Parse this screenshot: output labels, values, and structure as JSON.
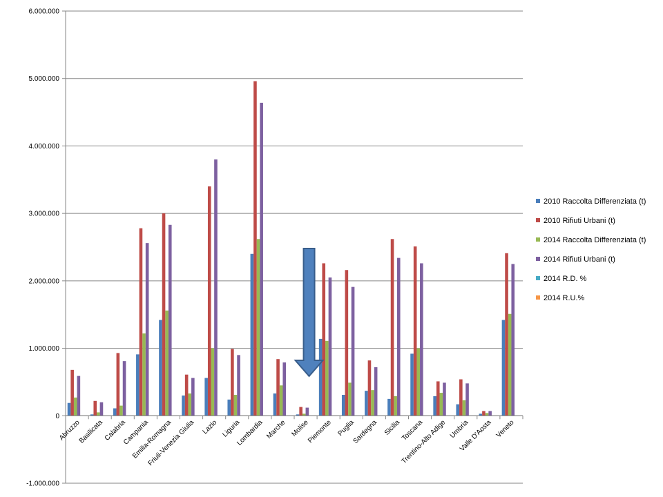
{
  "chart_data": {
    "type": "bar",
    "title": "",
    "xlabel": "",
    "ylabel": "",
    "ylim": [
      -1000000,
      6000000
    ],
    "yticks": [
      -1000000,
      0,
      1000000,
      2000000,
      3000000,
      4000000,
      5000000,
      6000000
    ],
    "ytick_labels": [
      "-1.000.000",
      "0",
      "1.000.000",
      "2.000.000",
      "3.000.000",
      "4.000.000",
      "5.000.000",
      "6.000.000"
    ],
    "grid": true,
    "legend_position": "right",
    "categories": [
      "Abruzzo",
      "Basilicata",
      "Calabria",
      "Campania",
      "Emilia-Romagna",
      "Friuli-Venezia Giulia",
      "Lazio",
      "Liguria",
      "Lombardia",
      "Marche",
      "Molise",
      "Piemonte",
      "Puglia",
      "Sardegna",
      "Sicilia",
      "Toscana",
      "Trentino-Alto Adige",
      "Umbria",
      "Valle D'Aosta",
      "Veneto"
    ],
    "series": [
      {
        "name": "2010 Raccolta Differenziata (t)",
        "color": "#4a7ebb",
        "values": [
          190000,
          20000,
          110000,
          910000,
          1420000,
          300000,
          560000,
          240000,
          2400000,
          330000,
          20000,
          1140000,
          310000,
          370000,
          250000,
          920000,
          290000,
          170000,
          30000,
          1420000
        ]
      },
      {
        "name": "2010 Rifiuti Urbani (t)",
        "color": "#be4b48",
        "values": [
          680000,
          220000,
          930000,
          2780000,
          3000000,
          610000,
          3400000,
          990000,
          4960000,
          840000,
          130000,
          2260000,
          2160000,
          820000,
          2620000,
          2510000,
          510000,
          540000,
          70000,
          2410000
        ]
      },
      {
        "name": "2014 Raccolta Differenziata (t)",
        "color": "#98b954",
        "values": [
          270000,
          50000,
          150000,
          1220000,
          1560000,
          330000,
          1000000,
          310000,
          2620000,
          450000,
          30000,
          1110000,
          490000,
          380000,
          290000,
          1000000,
          340000,
          230000,
          40000,
          1510000
        ]
      },
      {
        "name": "2014 Rifiuti Urbani (t)",
        "color": "#7d60a0",
        "values": [
          590000,
          200000,
          810000,
          2560000,
          2830000,
          560000,
          3800000,
          900000,
          4640000,
          790000,
          120000,
          2050000,
          1910000,
          720000,
          2340000,
          2260000,
          490000,
          480000,
          70000,
          2250000
        ]
      },
      {
        "name": "2014 R.D. %",
        "color": "#46aac5",
        "values": [
          0,
          0,
          0,
          0,
          0,
          0,
          0,
          0,
          0,
          0,
          0,
          0,
          0,
          0,
          0,
          0,
          0,
          0,
          0,
          0
        ]
      },
      {
        "name": "2014 R.U.%",
        "color": "#f79646",
        "values": [
          0,
          0,
          0,
          0,
          0,
          0,
          0,
          0,
          0,
          0,
          0,
          0,
          0,
          0,
          0,
          0,
          0,
          0,
          0,
          0
        ]
      }
    ],
    "annotations": [
      {
        "type": "down-arrow",
        "color": "#4f81bd",
        "points_to_category": "Molise"
      }
    ]
  }
}
